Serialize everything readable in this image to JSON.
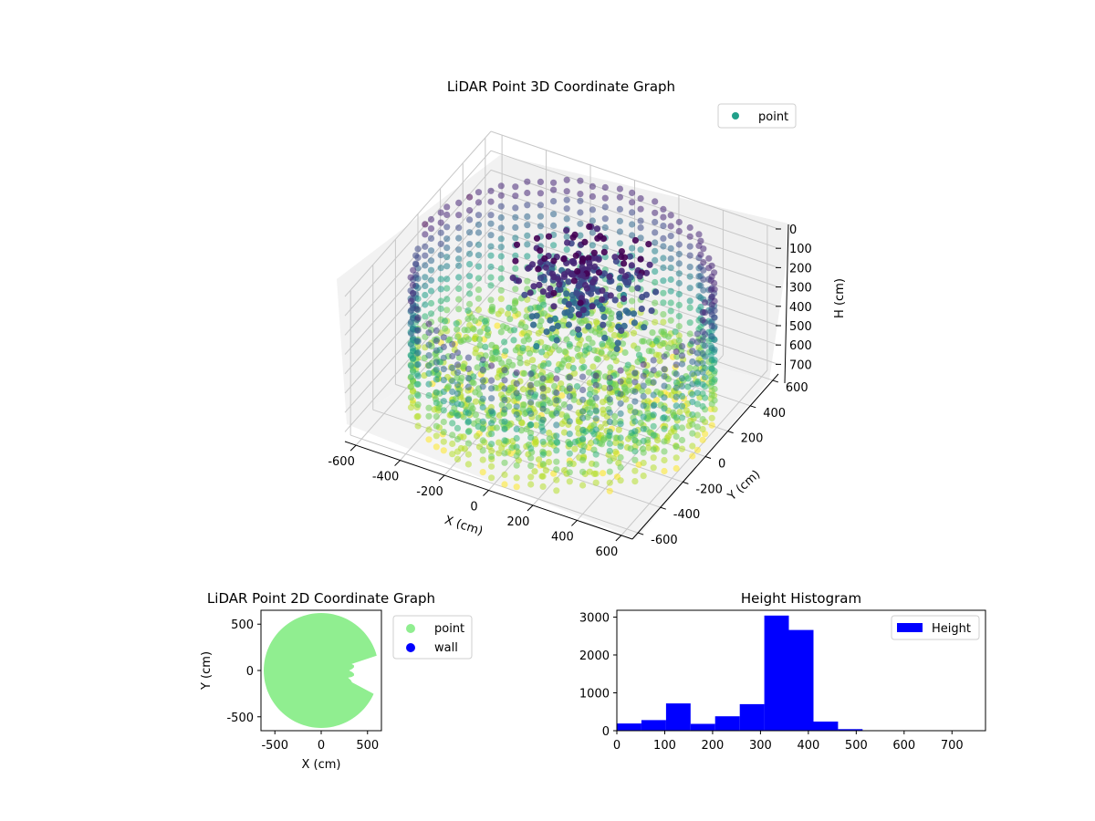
{
  "chart_data": [
    {
      "type": "scatter",
      "projection": "3d",
      "title": "LiDAR Point 3D Coordinate Graph",
      "xlabel": "X (cm)",
      "ylabel": "Y (cm)",
      "zlabel": "H (cm)",
      "xticks": [
        -600,
        -400,
        -200,
        0,
        200,
        400,
        600
      ],
      "yticks": [
        -600,
        -400,
        -200,
        0,
        200,
        400,
        600
      ],
      "zticks": [
        0,
        100,
        200,
        300,
        400,
        500,
        600,
        700
      ],
      "xlim": [
        -650,
        650
      ],
      "ylim": [
        -650,
        650
      ],
      "zlim": [
        750,
        0
      ],
      "zaxis_inverted": true,
      "colormap": "viridis",
      "color_by": "height",
      "legend": {
        "labels": [
          "point"
        ],
        "position": "upper-right",
        "color": "#21a08a"
      },
      "grid": true,
      "series": [
        {
          "name": "point",
          "description_points": [
            {
              "x": 0,
              "y": 0,
              "h": 650
            },
            {
              "x": 50,
              "y": 150,
              "h": 50
            },
            {
              "x": 600,
              "y": 0,
              "h": 350
            },
            {
              "x": -600,
              "y": 0,
              "h": 350
            },
            {
              "x": 0,
              "y": 600,
              "h": 300
            },
            {
              "x": 0,
              "y": -600,
              "h": 400
            }
          ]
        }
      ]
    },
    {
      "type": "scatter",
      "title": "LiDAR Point 2D Coordinate Graph",
      "xlabel": "X (cm)",
      "ylabel": "Y (cm)",
      "xticks": [
        -500,
        0,
        500
      ],
      "yticks": [
        -500,
        0,
        500
      ],
      "xlim": [
        -650,
        650
      ],
      "ylim": [
        -650,
        650
      ],
      "legend": {
        "position": "outside-right"
      },
      "series": [
        {
          "name": "point",
          "color": "#90ee90",
          "shape": "disc-radius-620-with-notch"
        },
        {
          "name": "wall",
          "color": "#0000ff",
          "values": []
        }
      ]
    },
    {
      "type": "bar",
      "subtype": "histogram",
      "title": "Height Histogram",
      "xlabel": "",
      "ylabel": "",
      "xlim": [
        0,
        770
      ],
      "ylim": [
        0,
        3180
      ],
      "xticks": [
        0,
        100,
        200,
        300,
        400,
        500,
        600,
        700
      ],
      "yticks": [
        0,
        1000,
        2000,
        3000
      ],
      "bar_color": "#0000ff",
      "legend": {
        "labels": [
          "Height"
        ],
        "position": "upper-right"
      },
      "bin_edges": [
        0,
        51.3,
        102.7,
        154,
        205.3,
        256.7,
        308,
        359.3,
        410.7,
        462,
        513.3,
        564.7,
        616,
        667.3,
        718.7,
        770
      ],
      "series": [
        {
          "name": "Height",
          "values": [
            190,
            280,
            720,
            180,
            380,
            700,
            3040,
            2660,
            240,
            40,
            10,
            5,
            5,
            5,
            5
          ]
        }
      ]
    }
  ]
}
